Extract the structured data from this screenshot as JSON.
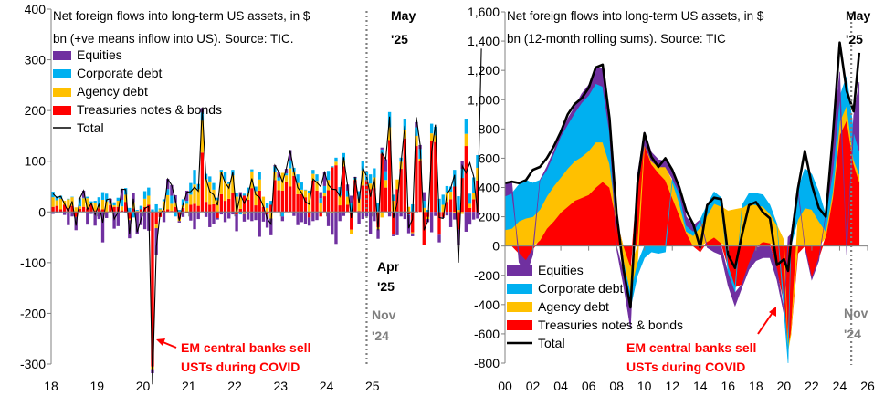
{
  "colors": {
    "equities": "#7030A0",
    "corporate_debt": "#00B0F0",
    "agency_debt": "#FFC000",
    "treasuries": "#FF0000",
    "total": "#000000",
    "marker_line": "#808080",
    "red_annotation": "#FF0000",
    "grey_annotation": "#808080"
  },
  "chart_data": [
    {
      "type": "bar",
      "stacked": true,
      "title": "Net foreign flows into long-term US assets, in $ bn (+ve means inflow into US). Source: TIC.",
      "title_lines": [
        "Net foreign flows into long-term US assets, in $",
        "bn (+ve means inflow into US). Source: TIC."
      ],
      "frequency": "monthly",
      "x_range": [
        "2018-01",
        "2025-05"
      ],
      "ylim": [
        -300,
        400
      ],
      "yticks": [
        -300,
        -200,
        -100,
        0,
        100,
        200,
        300,
        400
      ],
      "xtick_labels": [
        "18",
        "19",
        "20",
        "21",
        "22",
        "23",
        "24",
        "25"
      ],
      "legend": {
        "placement": "top-left",
        "entries": [
          "Equities",
          "Corporate debt",
          "Agency debt",
          "Treasuries notes & bonds",
          "Total"
        ]
      },
      "series_keys": [
        "Treasuries",
        "Agency",
        "Corporate",
        "Equities"
      ],
      "series": [
        {
          "name": "Treasuries notes & bonds",
          "values": [
            10,
            12,
            5,
            14,
            8,
            12,
            -10,
            6,
            10,
            7,
            14,
            3,
            7,
            5,
            -2,
            13,
            10,
            10,
            3,
            20,
            -13,
            7,
            -2,
            5,
            10,
            14,
            -305,
            -25,
            -10,
            3,
            5,
            2,
            10,
            -13,
            8,
            -3,
            14,
            16,
            12,
            117,
            20,
            14,
            15,
            -12,
            35,
            22,
            26,
            38,
            -5,
            6,
            32,
            24,
            47,
            13,
            42,
            10,
            -5,
            14,
            63,
            43,
            42,
            60,
            50,
            71,
            35,
            35,
            29,
            -11,
            62,
            42,
            -9,
            31,
            43,
            88,
            92,
            13,
            90,
            14,
            -35,
            63,
            2,
            52,
            63,
            45,
            47,
            -30,
            115,
            48,
            142,
            -45,
            45,
            85,
            145,
            -5,
            -40,
            130,
            100,
            -65,
            -10,
            140,
            138,
            -45,
            -10,
            20,
            25,
            50,
            -35,
            67,
            130,
            8,
            25,
            62
          ]
        },
        {
          "name": "Agency debt",
          "values": [
            19,
            11,
            21,
            8,
            17,
            17,
            9,
            5,
            17,
            20,
            4,
            15,
            5,
            19,
            21,
            3,
            3,
            12,
            8,
            14,
            -3,
            12,
            2,
            -1,
            16,
            18,
            -5,
            -7,
            5,
            18,
            28,
            14,
            9,
            -5,
            5,
            16,
            20,
            38,
            33,
            63,
            45,
            46,
            29,
            23,
            44,
            40,
            29,
            34,
            30,
            24,
            -4,
            14,
            33,
            28,
            22,
            20,
            8,
            -13,
            16,
            19,
            35,
            12,
            36,
            8,
            22,
            9,
            14,
            37,
            13,
            19,
            18,
            6,
            20,
            -2,
            7,
            19,
            12,
            16,
            -9,
            1,
            24,
            30,
            0,
            11,
            21,
            -4,
            -11,
            15,
            25,
            22,
            19,
            14,
            16,
            10,
            -2,
            20,
            5,
            8,
            -4,
            15,
            13,
            0,
            14,
            19,
            15,
            -2,
            4,
            -4,
            24,
            8,
            12,
            25,
            35,
            17
          ]
        },
        {
          "name": "Corporate debt",
          "values": [
            11,
            8,
            6,
            0,
            1,
            1,
            0,
            15,
            1,
            3,
            3,
            4,
            17,
            15,
            15,
            3,
            6,
            6,
            13,
            13,
            8,
            -11,
            2,
            7,
            15,
            16,
            5,
            15,
            2,
            4,
            12,
            16,
            -9,
            4,
            12,
            6,
            23,
            29,
            10,
            16,
            10,
            10,
            13,
            5,
            4,
            16,
            5,
            11,
            7,
            -5,
            4,
            10,
            4,
            9,
            14,
            0,
            10,
            8,
            11,
            6,
            -9,
            4,
            16,
            8,
            17,
            14,
            1,
            5,
            8,
            13,
            9,
            14,
            18,
            2,
            8,
            17,
            14,
            12,
            18,
            3,
            15,
            19,
            16,
            18,
            18,
            17,
            8,
            17,
            30,
            12,
            -2,
            8,
            23,
            -1,
            15,
            17,
            19,
            14,
            4,
            19,
            17,
            26,
            20,
            12,
            10,
            33,
            27,
            18,
            30,
            20,
            31,
            25,
            36
          ]
        },
        {
          "name": "Equities",
          "values": [
            -4,
            -3,
            -1,
            -6,
            -26,
            -9,
            -26,
            1,
            14,
            -25,
            -4,
            -27,
            -14,
            -60,
            -10,
            7,
            -33,
            -28,
            21,
            -3,
            -36,
            18,
            -42,
            -25,
            -34,
            -37,
            -8,
            -52,
            0,
            -20,
            20,
            21,
            14,
            -3,
            -10,
            20,
            -17,
            -34,
            -14,
            9,
            -10,
            -30,
            -23,
            -3,
            -5,
            -20,
            -13,
            -5,
            -33,
            9,
            -15,
            -15,
            -18,
            -16,
            -49,
            -19,
            -26,
            -33,
            2,
            11,
            -9,
            9,
            20,
            -8,
            -26,
            -20,
            -24,
            -16,
            -18,
            -16,
            12,
            27,
            -28,
            -43,
            -63,
            -18,
            -8,
            12,
            14,
            2,
            -24,
            -14,
            -9,
            -44,
            -18,
            -19,
            4,
            24,
            -9,
            -3,
            -44,
            -9,
            -14,
            -36,
            -6,
            10,
            8,
            17,
            -6,
            -40,
            -8,
            -15,
            -2,
            -7,
            -30,
            -13,
            -31,
            16,
            -39,
            -25,
            -15,
            -13,
            -60,
            -37,
            180
          ]
        },
        {
          "name": "Total",
          "values": [
            36,
            28,
            31,
            16,
            0,
            21,
            -27,
            27,
            42,
            5,
            17,
            -5,
            15,
            -21,
            24,
            26,
            -14,
            0,
            45,
            44,
            -44,
            26,
            -40,
            -14,
            7,
            11,
            -340,
            -69,
            -3,
            5,
            65,
            53,
            24,
            -17,
            15,
            39,
            40,
            49,
            41,
            205,
            65,
            40,
            34,
            13,
            78,
            58,
            47,
            78,
            -1,
            34,
            17,
            33,
            66,
            34,
            29,
            11,
            -13,
            -24,
            92,
            79,
            59,
            85,
            122,
            79,
            48,
            38,
            20,
            15,
            65,
            58,
            50,
            78,
            53,
            45,
            44,
            31,
            108,
            54,
            -12,
            69,
            17,
            87,
            70,
            30,
            68,
            -36,
            116,
            104,
            188,
            -12,
            18,
            98,
            170,
            -32,
            -14,
            187,
            132,
            -36,
            -18,
            119,
            172,
            -11,
            -13,
            35,
            47,
            73,
            -100,
            91,
            77,
            97,
            70,
            -3,
            322
          ]
        }
      ],
      "annotations": {
        "covid": [
          "EM central banks sell",
          "USTs during COVID"
        ],
        "marker_label": [
          "Nov",
          "'24"
        ],
        "start_label": [
          "Apr",
          "'25"
        ],
        "end_label": [
          "May",
          "'25"
        ],
        "marker_date": "2024-11"
      }
    },
    {
      "type": "area",
      "stacked": true,
      "title": "Net foreign flows into long-term US assets, in $ bn (12-month rolling sums). Source: TIC",
      "title_lines": [
        "Net foreign flows into long-term US assets, in $",
        "bn (12-month rolling sums). Source:  TIC"
      ],
      "x_range": [
        "2000",
        "2025.4"
      ],
      "ylim": [
        -800,
        1600
      ],
      "yticks": [
        -800,
        -600,
        -400,
        -200,
        0,
        200,
        400,
        600,
        800,
        1000,
        1200,
        1400,
        1600
      ],
      "ytick_labels": [
        "-800",
        "-600",
        "-400",
        "-200",
        "0",
        "200",
        "400",
        "600",
        "800",
        "1,000",
        "1,200",
        "1,400",
        "1,600"
      ],
      "xtick_labels": [
        "00",
        "02",
        "04",
        "06",
        "08",
        "10",
        "12",
        "14",
        "16",
        "18",
        "20",
        "22",
        "24",
        "26"
      ],
      "legend": {
        "placement": "bottom-left",
        "entries": [
          "Equities",
          "Corporate debt",
          "Agency debt",
          "Treasuries notes & bonds",
          "Total"
        ]
      },
      "x": [
        2000,
        2000.5,
        2001,
        2001.5,
        2002,
        2002.5,
        2003,
        2003.5,
        2004,
        2004.5,
        2005,
        2005.5,
        2006,
        2006.5,
        2007,
        2007.5,
        2008,
        2008.5,
        2009,
        2009.5,
        2010,
        2010.5,
        2011,
        2011.5,
        2012,
        2012.5,
        2013,
        2013.5,
        2014,
        2014.5,
        2015,
        2015.5,
        2016,
        2016.5,
        2017,
        2017.5,
        2018,
        2018.5,
        2019,
        2019.5,
        2020,
        2020.3,
        2020.5,
        2021,
        2021.5,
        2022,
        2022.5,
        2023,
        2023.5,
        2024,
        2024.5,
        2025,
        2025.4
      ],
      "series": [
        {
          "name": "Treasuries notes & bonds",
          "values": [
            0,
            0,
            -50,
            -100,
            -20,
            40,
            120,
            170,
            230,
            270,
            310,
            330,
            350,
            400,
            440,
            400,
            170,
            -10,
            -150,
            430,
            690,
            560,
            500,
            450,
            330,
            210,
            90,
            0,
            -40,
            30,
            60,
            20,
            -140,
            -280,
            -260,
            -120,
            -10,
            30,
            20,
            -160,
            -380,
            -690,
            -600,
            -50,
            0,
            -220,
            -80,
            60,
            330,
            760,
            860,
            560,
            440
          ]
        },
        {
          "name": "Agency debt",
          "values": [
            110,
            120,
            170,
            190,
            200,
            210,
            220,
            240,
            240,
            260,
            270,
            280,
            300,
            310,
            270,
            160,
            20,
            -100,
            -180,
            -120,
            0,
            20,
            40,
            90,
            110,
            80,
            10,
            70,
            130,
            180,
            230,
            250,
            240,
            250,
            260,
            290,
            280,
            240,
            200,
            140,
            40,
            -20,
            -10,
            180,
            260,
            250,
            170,
            40,
            40,
            90,
            100,
            30,
            50
          ]
        },
        {
          "name": "Corporate debt",
          "values": [
            230,
            240,
            250,
            260,
            230,
            200,
            180,
            220,
            280,
            300,
            330,
            370,
            380,
            400,
            380,
            210,
            40,
            -80,
            -90,
            -80,
            -80,
            -40,
            -50,
            -40,
            20,
            70,
            40,
            30,
            50,
            70,
            80,
            60,
            -50,
            -40,
            20,
            70,
            80,
            80,
            60,
            10,
            -60,
            -90,
            40,
            200,
            270,
            240,
            200,
            110,
            130,
            170,
            200,
            190,
            160
          ]
        },
        {
          "name": "Equities",
          "values": [
            90,
            70,
            -60,
            -100,
            -40,
            0,
            20,
            20,
            20,
            40,
            40,
            60,
            70,
            110,
            120,
            70,
            -20,
            -80,
            -140,
            60,
            90,
            60,
            50,
            40,
            50,
            60,
            60,
            40,
            0,
            -10,
            -40,
            -60,
            -80,
            -90,
            -20,
            -40,
            -90,
            -80,
            -80,
            -70,
            -20,
            60,
            40,
            20,
            -10,
            -10,
            -20,
            10,
            230,
            170,
            -60,
            110,
            470
          ]
        },
        {
          "name": "Total",
          "values": [
            430,
            440,
            430,
            450,
            520,
            540,
            600,
            680,
            780,
            900,
            970,
            1010,
            1080,
            1220,
            1240,
            870,
            220,
            -160,
            -420,
            430,
            770,
            610,
            540,
            600,
            520,
            400,
            240,
            150,
            -10,
            280,
            330,
            320,
            -60,
            -150,
            80,
            280,
            300,
            230,
            190,
            -130,
            -90,
            -170,
            20,
            390,
            650,
            420,
            260,
            200,
            740,
            1390,
            1060,
            920,
            1320
          ]
        }
      ],
      "annotations": {
        "covid": [
          "EM central banks sell",
          "USTs during COVID"
        ],
        "marker_label": [
          "Nov",
          "'24"
        ],
        "end_label": [
          "May",
          "'25"
        ],
        "marker_year": 2024.83
      }
    }
  ]
}
